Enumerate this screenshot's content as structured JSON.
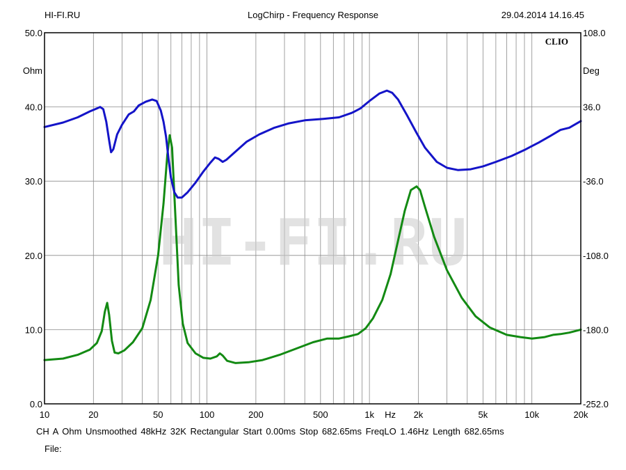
{
  "header": {
    "site": "HI-FI.RU",
    "title": "LogChirp - Frequency Response",
    "timestamp": "29.04.2014 14.16.45"
  },
  "footer": {
    "settings": "CH A   Ohm   Unsmoothed   48kHz   32K   Rectangular   Start 0.00ms   Stop 682.65ms   FreqLO 1.46Hz   Length 682.65ms",
    "file_label": "File:"
  },
  "chart_data": {
    "type": "line",
    "title": "LogChirp - Frequency Response",
    "brand": "CLIO",
    "watermark": "HI-FI.RU",
    "xscale": "log",
    "xlim": [
      10,
      20000
    ],
    "xlabel": "Hz",
    "x_tick_labels": [
      {
        "value": 10,
        "label": "10"
      },
      {
        "value": 20,
        "label": "20"
      },
      {
        "value": 50,
        "label": "50"
      },
      {
        "value": 100,
        "label": "100"
      },
      {
        "value": 200,
        "label": "200"
      },
      {
        "value": 500,
        "label": "500"
      },
      {
        "value": 1000,
        "label": "1k"
      },
      {
        "value": 2000,
        "label": "2k"
      },
      {
        "value": 5000,
        "label": "5k"
      },
      {
        "value": 10000,
        "label": "10k"
      },
      {
        "value": 20000,
        "label": "20k"
      }
    ],
    "y_left": {
      "label": "Ohm",
      "ylim": [
        0,
        50
      ],
      "ticks": [
        "0.0",
        "10.0",
        "20.0",
        "30.0",
        "40.0",
        "50.0"
      ]
    },
    "y_right": {
      "label": "Deg",
      "ylim": [
        -252,
        108
      ],
      "ticks": [
        "-252.0",
        "-180.0",
        "-108.0",
        "-36.0",
        "36.0",
        "108.0"
      ]
    },
    "grid": true,
    "series": [
      {
        "axis": "left",
        "color": "#138a13",
        "points": [
          [
            10,
            5.9
          ],
          [
            13,
            6.1
          ],
          [
            16,
            6.6
          ],
          [
            19,
            7.3
          ],
          [
            21,
            8.2
          ],
          [
            22.5,
            9.8
          ],
          [
            23.5,
            12.4
          ],
          [
            24.3,
            13.6
          ],
          [
            25,
            12.0
          ],
          [
            26,
            8.5
          ],
          [
            27,
            6.9
          ],
          [
            28.5,
            6.8
          ],
          [
            31,
            7.2
          ],
          [
            35,
            8.3
          ],
          [
            40,
            10.2
          ],
          [
            45,
            14.0
          ],
          [
            50,
            20.0
          ],
          [
            54,
            27.0
          ],
          [
            57,
            33.5
          ],
          [
            59,
            36.2
          ],
          [
            61,
            34.5
          ],
          [
            64,
            25.0
          ],
          [
            67,
            16.0
          ],
          [
            71,
            10.8
          ],
          [
            76,
            8.2
          ],
          [
            85,
            6.8
          ],
          [
            95,
            6.2
          ],
          [
            105,
            6.1
          ],
          [
            115,
            6.4
          ],
          [
            120,
            6.8
          ],
          [
            125,
            6.5
          ],
          [
            133,
            5.8
          ],
          [
            150,
            5.5
          ],
          [
            180,
            5.6
          ],
          [
            220,
            5.9
          ],
          [
            280,
            6.6
          ],
          [
            350,
            7.4
          ],
          [
            450,
            8.3
          ],
          [
            550,
            8.8
          ],
          [
            650,
            8.8
          ],
          [
            750,
            9.1
          ],
          [
            850,
            9.4
          ],
          [
            950,
            10.2
          ],
          [
            1050,
            11.5
          ],
          [
            1200,
            14.0
          ],
          [
            1350,
            17.5
          ],
          [
            1500,
            22.0
          ],
          [
            1650,
            26.0
          ],
          [
            1800,
            28.8
          ],
          [
            1950,
            29.3
          ],
          [
            2050,
            28.8
          ],
          [
            2200,
            26.5
          ],
          [
            2500,
            22.5
          ],
          [
            3000,
            18.0
          ],
          [
            3700,
            14.3
          ],
          [
            4500,
            11.8
          ],
          [
            5500,
            10.3
          ],
          [
            7000,
            9.3
          ],
          [
            8500,
            9.0
          ],
          [
            10000,
            8.8
          ],
          [
            12000,
            9.0
          ],
          [
            13500,
            9.3
          ],
          [
            15000,
            9.4
          ],
          [
            17000,
            9.6
          ],
          [
            20000,
            10.0
          ]
        ]
      },
      {
        "axis": "left",
        "color": "#1414c8",
        "points": [
          [
            10,
            37.3
          ],
          [
            13,
            37.9
          ],
          [
            16,
            38.6
          ],
          [
            19,
            39.4
          ],
          [
            21,
            39.8
          ],
          [
            22,
            40.0
          ],
          [
            23,
            39.7
          ],
          [
            24,
            38.0
          ],
          [
            25,
            35.5
          ],
          [
            25.7,
            33.9
          ],
          [
            26.5,
            34.3
          ],
          [
            28,
            36.3
          ],
          [
            30,
            37.6
          ],
          [
            33,
            39.0
          ],
          [
            35.5,
            39.4
          ],
          [
            38,
            40.2
          ],
          [
            42,
            40.7
          ],
          [
            46,
            41.0
          ],
          [
            49,
            40.8
          ],
          [
            52,
            39.5
          ],
          [
            54,
            38.0
          ],
          [
            56,
            36.0
          ],
          [
            58,
            33.0
          ],
          [
            60,
            30.5
          ],
          [
            63,
            28.5
          ],
          [
            66,
            27.8
          ],
          [
            70,
            27.8
          ],
          [
            76,
            28.5
          ],
          [
            85,
            29.8
          ],
          [
            95,
            31.3
          ],
          [
            105,
            32.5
          ],
          [
            112,
            33.2
          ],
          [
            118,
            33.0
          ],
          [
            125,
            32.6
          ],
          [
            132,
            32.9
          ],
          [
            150,
            34.0
          ],
          [
            175,
            35.3
          ],
          [
            210,
            36.3
          ],
          [
            260,
            37.2
          ],
          [
            320,
            37.8
          ],
          [
            400,
            38.2
          ],
          [
            520,
            38.4
          ],
          [
            650,
            38.6
          ],
          [
            780,
            39.2
          ],
          [
            880,
            39.8
          ],
          [
            1000,
            40.8
          ],
          [
            1150,
            41.8
          ],
          [
            1280,
            42.2
          ],
          [
            1380,
            41.9
          ],
          [
            1500,
            41.0
          ],
          [
            1700,
            38.9
          ],
          [
            1950,
            36.5
          ],
          [
            2200,
            34.5
          ],
          [
            2600,
            32.6
          ],
          [
            3000,
            31.8
          ],
          [
            3500,
            31.5
          ],
          [
            4200,
            31.6
          ],
          [
            5000,
            32.0
          ],
          [
            6000,
            32.6
          ],
          [
            7500,
            33.4
          ],
          [
            9000,
            34.2
          ],
          [
            11000,
            35.2
          ],
          [
            13000,
            36.1
          ],
          [
            15000,
            36.9
          ],
          [
            17000,
            37.2
          ],
          [
            20000,
            38.1
          ]
        ]
      }
    ]
  }
}
